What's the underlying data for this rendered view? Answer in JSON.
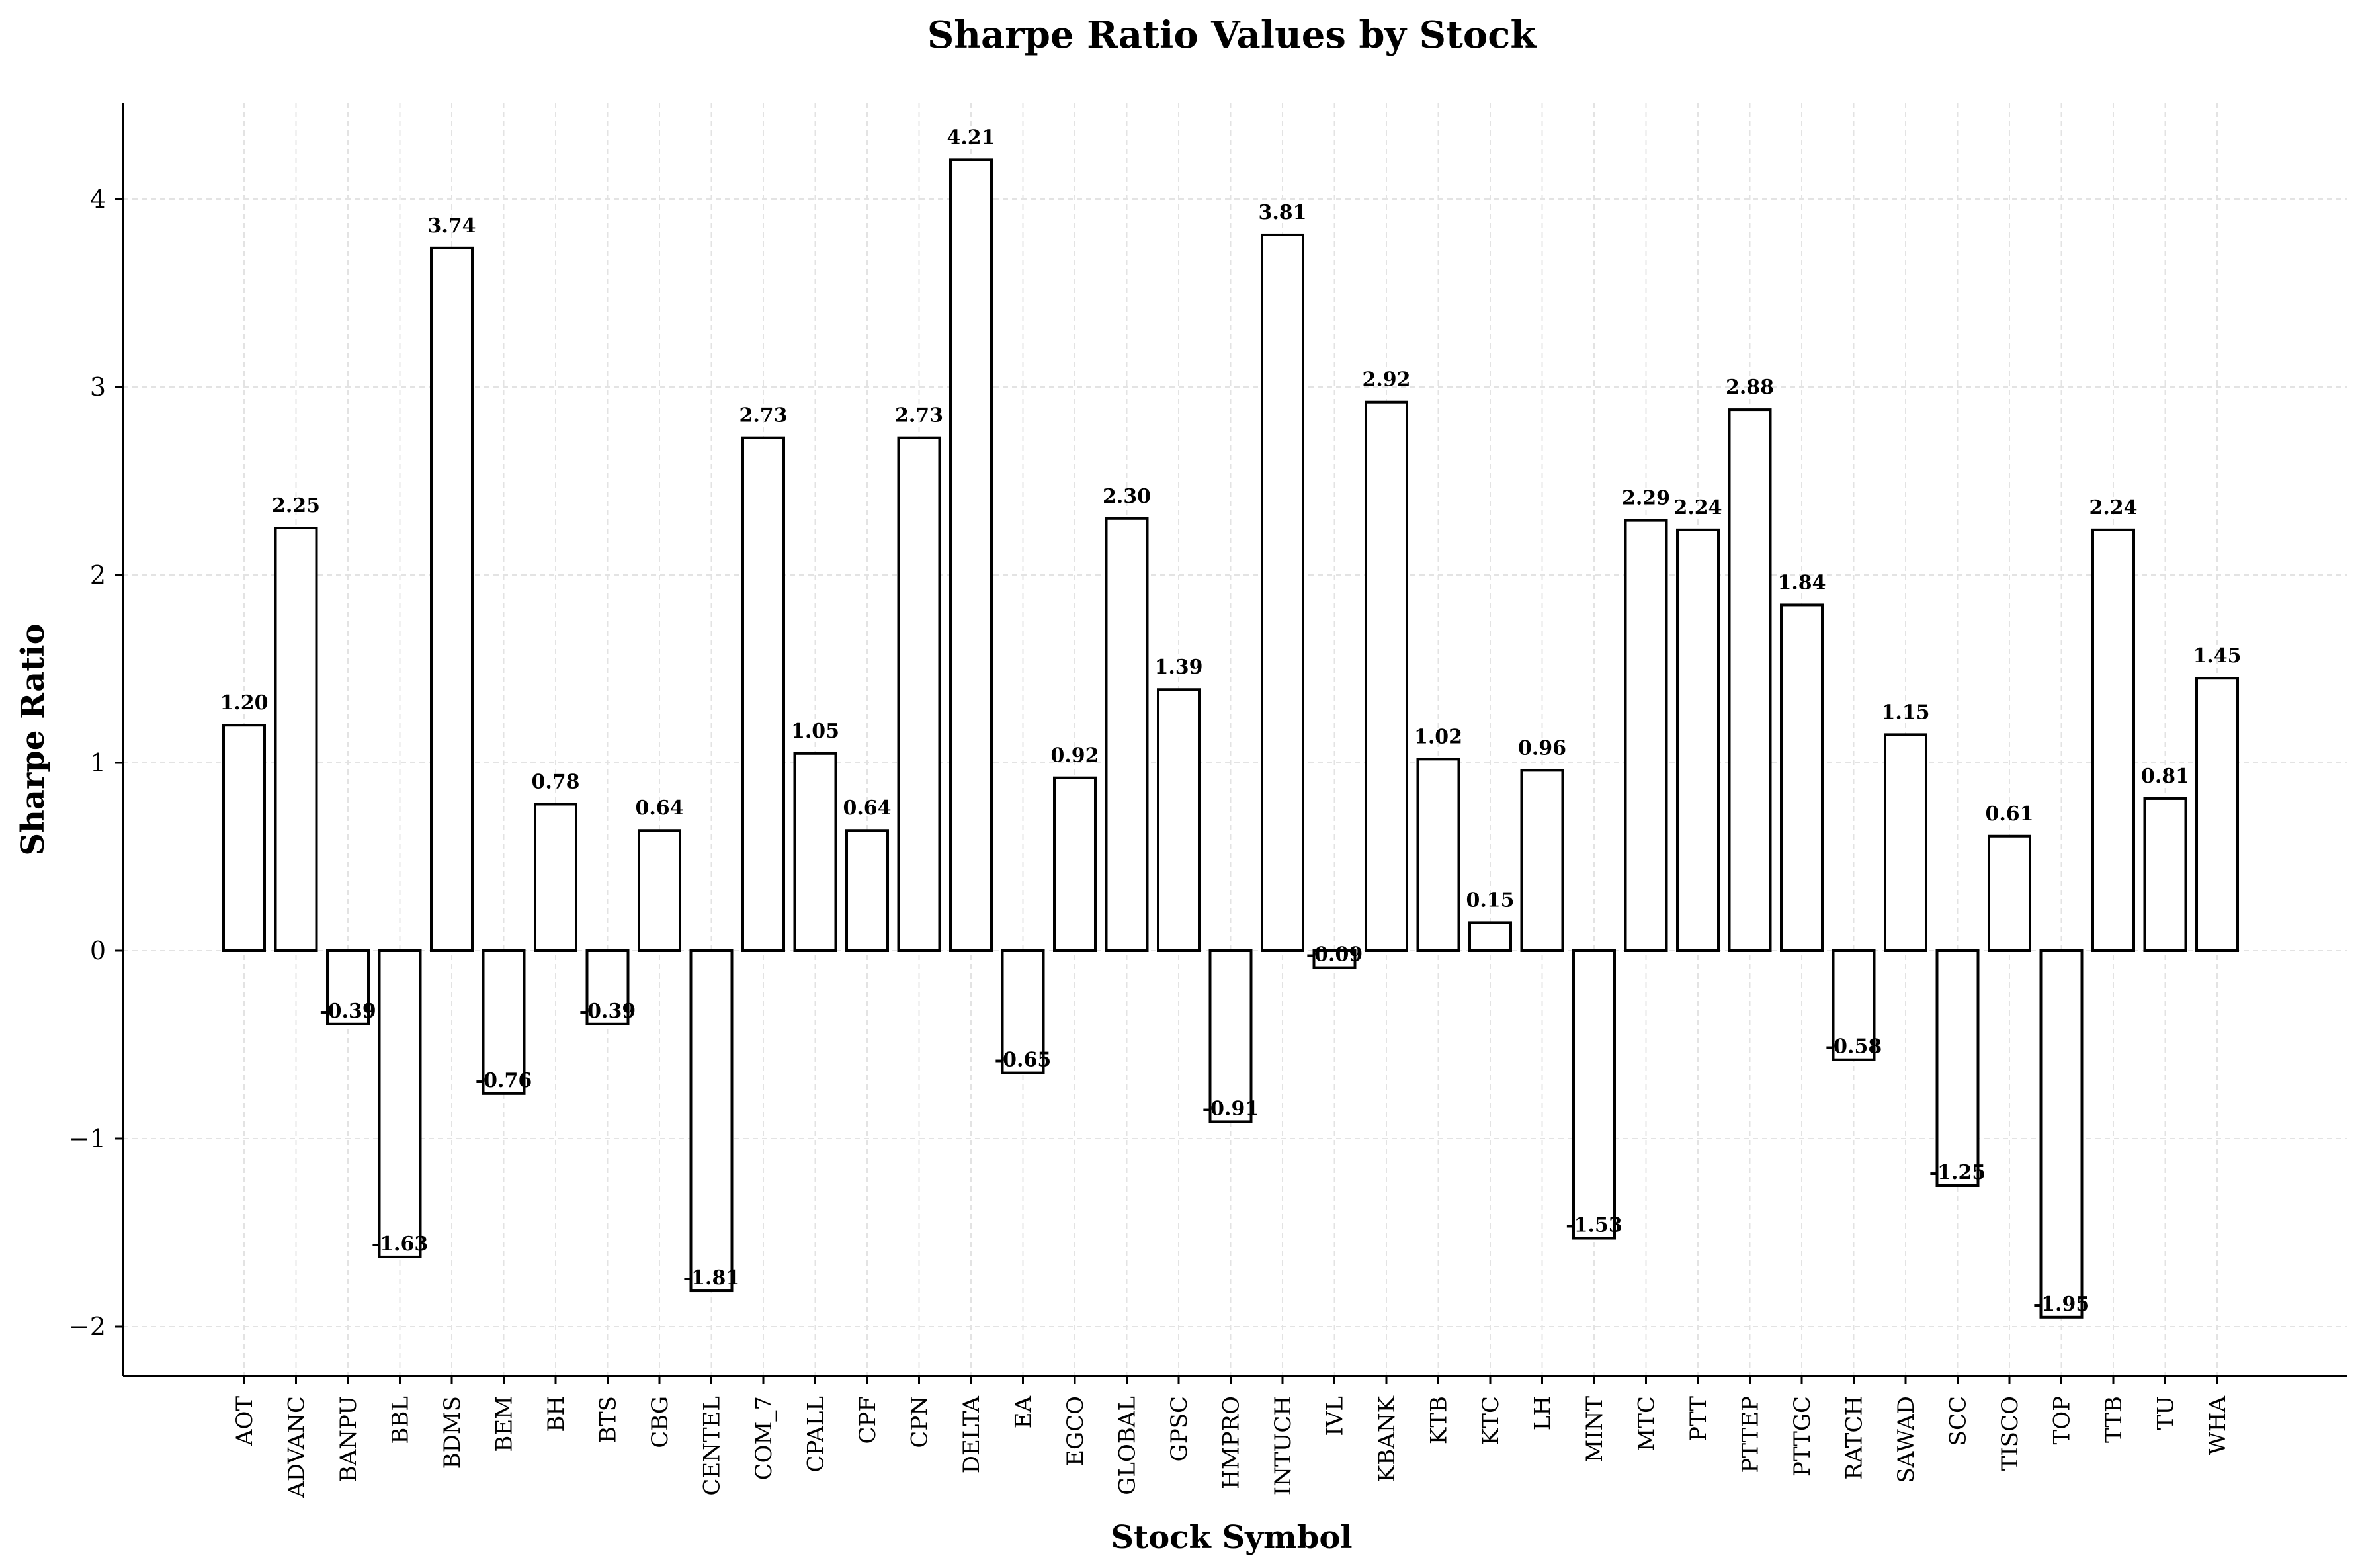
{
  "chart_data": {
    "type": "bar",
    "title": "Sharpe Ratio Values by Stock",
    "xlabel": "Stock Symbol",
    "ylabel": "Sharpe Ratio",
    "ylim": [
      -2.25,
      4.55
    ],
    "yticks": [
      -2,
      -1,
      0,
      1,
      2,
      3,
      4
    ],
    "ytick_labels": [
      "−2",
      "−1",
      "0",
      "1",
      "2",
      "3",
      "4"
    ],
    "grid": true,
    "legend": "none",
    "bar_fill": "#ffffff",
    "bar_edge": "#000000",
    "categories": [
      "AOT",
      "ADVANC",
      "BANPU",
      "BBL",
      "BDMS",
      "BEM",
      "BH",
      "BTS",
      "CBG",
      "CENTEL",
      "COM_7",
      "CPALL",
      "CPF",
      "CPN",
      "DELTA",
      "EA",
      "EGCO",
      "GLOBAL",
      "GPSC",
      "HMPRO",
      "INTUCH",
      "IVL",
      "KBANK",
      "KTB",
      "KTC",
      "LH",
      "MINT",
      "MTC",
      "PTT",
      "PTTEP",
      "PTTGC",
      "RATCH",
      "SAWAD",
      "SCC",
      "TISCO",
      "TOP",
      "TTB",
      "TU",
      "WHA"
    ],
    "values": [
      1.2,
      2.25,
      -0.39,
      -1.63,
      3.74,
      -0.76,
      0.78,
      -0.39,
      0.64,
      -1.81,
      2.73,
      1.05,
      0.64,
      2.73,
      4.21,
      -0.65,
      0.92,
      2.3,
      1.39,
      -0.91,
      3.81,
      -0.09,
      2.92,
      1.02,
      0.15,
      0.96,
      -1.53,
      2.29,
      2.24,
      2.88,
      1.84,
      -0.58,
      1.15,
      -1.25,
      0.61,
      -1.95,
      2.24,
      0.81,
      1.45
    ],
    "value_labels": [
      "1.20",
      "2.25",
      "-0.39",
      "-1.63",
      "3.74",
      "-0.76",
      "0.78",
      "-0.39",
      "0.64",
      "-1.81",
      "2.73",
      "1.05",
      "0.64",
      "2.73",
      "4.21",
      "-0.65",
      "0.92",
      "2.30",
      "1.39",
      "-0.91",
      "3.81",
      "-0.09",
      "2.92",
      "1.02",
      "0.15",
      "0.96",
      "-1.53",
      "2.29",
      "2.24",
      "2.88",
      "1.84",
      "-0.58",
      "1.15",
      "-1.25",
      "0.61",
      "-1.95",
      "2.24",
      "0.81",
      "1.45"
    ]
  }
}
